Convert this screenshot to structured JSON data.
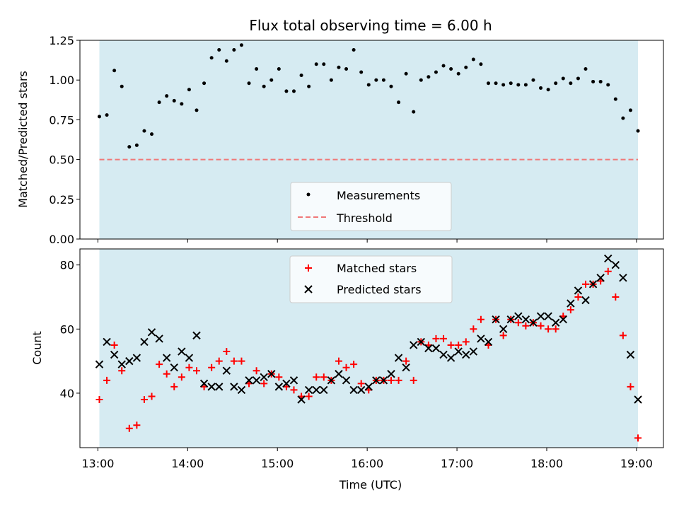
{
  "chart_data": [
    {
      "type": "scatter",
      "title": "Flux total observing time = 6.00 h",
      "ylabel": "Matched/Predicted stars",
      "ylim": [
        0,
        1.25
      ],
      "yticks": [
        "0.00",
        "0.25",
        "0.50",
        "0.75",
        "1.00",
        "1.25"
      ],
      "ytick_values": [
        0,
        0.25,
        0.5,
        0.75,
        1.0,
        1.25
      ],
      "xticks": [
        "13:00",
        "14:00",
        "15:00",
        "16:00",
        "17:00",
        "18:00",
        "19:00"
      ],
      "xtick_values": [
        "13:00",
        "14:00",
        "15:00",
        "16:00",
        "17:00",
        "18:00",
        "19:00"
      ],
      "xlim": [
        "12:48",
        "19:18"
      ],
      "shaded_span": [
        "13:01",
        "19:01"
      ],
      "grid": false,
      "legend_position": "lower center",
      "threshold": {
        "name": "Threshold",
        "value": 0.5,
        "color": "#f07878",
        "style": "dashed"
      },
      "series": [
        {
          "name": "Measurements",
          "color": "#000000",
          "marker": "dot",
          "x": [
            "13:01",
            "13:06",
            "13:11",
            "13:16",
            "13:21",
            "13:26",
            "13:31",
            "13:36",
            "13:41",
            "13:46",
            "13:51",
            "13:56",
            "14:01",
            "14:06",
            "14:11",
            "14:16",
            "14:21",
            "14:26",
            "14:31",
            "14:36",
            "14:41",
            "14:46",
            "14:51",
            "14:56",
            "15:01",
            "15:06",
            "15:11",
            "15:16",
            "15:21",
            "15:26",
            "15:31",
            "15:36",
            "15:41",
            "15:46",
            "15:51",
            "15:56",
            "16:01",
            "16:06",
            "16:11",
            "16:16",
            "16:21",
            "16:26",
            "16:31",
            "16:36",
            "16:41",
            "16:46",
            "16:51",
            "16:56",
            "17:01",
            "17:06",
            "17:11",
            "17:16",
            "17:21",
            "17:26",
            "17:31",
            "17:36",
            "17:41",
            "17:46",
            "17:51",
            "17:56",
            "18:01",
            "18:06",
            "18:11",
            "18:16",
            "18:21",
            "18:26",
            "18:31",
            "18:36",
            "18:41",
            "18:46",
            "18:51",
            "18:56",
            "19:01"
          ],
          "y": [
            0.77,
            0.78,
            1.06,
            0.96,
            0.58,
            0.59,
            0.68,
            0.66,
            0.86,
            0.9,
            0.87,
            0.85,
            0.94,
            0.81,
            0.98,
            1.14,
            1.19,
            1.12,
            1.19,
            1.22,
            0.98,
            1.07,
            0.96,
            1.0,
            1.07,
            0.93,
            0.93,
            1.03,
            0.96,
            1.1,
            1.1,
            1.0,
            1.08,
            1.07,
            1.19,
            1.05,
            0.97,
            1.0,
            1.0,
            0.96,
            0.86,
            1.04,
            0.8,
            1.0,
            1.02,
            1.05,
            1.09,
            1.07,
            1.04,
            1.08,
            1.13,
            1.1,
            0.98,
            0.98,
            0.97,
            0.98,
            0.97,
            0.97,
            1.0,
            0.95,
            0.94,
            0.98,
            1.01,
            0.98,
            1.01,
            1.07,
            0.99,
            0.99,
            0.97,
            0.88,
            0.76,
            0.81,
            0.68
          ]
        }
      ]
    },
    {
      "type": "scatter",
      "xlabel": "Time (UTC)",
      "ylabel": "Count",
      "ylim": [
        23,
        85
      ],
      "yticks": [
        "40",
        "60",
        "80"
      ],
      "ytick_values": [
        40,
        60,
        80
      ],
      "xticks": [
        "13:00",
        "14:00",
        "15:00",
        "16:00",
        "17:00",
        "18:00",
        "19:00"
      ],
      "xtick_values": [
        "13:00",
        "14:00",
        "15:00",
        "16:00",
        "17:00",
        "18:00",
        "19:00"
      ],
      "xlim": [
        "12:48",
        "19:18"
      ],
      "shaded_span": [
        "13:01",
        "19:01"
      ],
      "grid": false,
      "legend_position": "upper center",
      "series": [
        {
          "name": "Matched stars",
          "color": "#ff0000",
          "marker": "plus",
          "x": [
            "13:01",
            "13:06",
            "13:11",
            "13:16",
            "13:21",
            "13:26",
            "13:31",
            "13:36",
            "13:41",
            "13:46",
            "13:51",
            "13:56",
            "14:01",
            "14:06",
            "14:11",
            "14:16",
            "14:21",
            "14:26",
            "14:31",
            "14:36",
            "14:41",
            "14:46",
            "14:51",
            "14:56",
            "15:01",
            "15:06",
            "15:11",
            "15:16",
            "15:21",
            "15:26",
            "15:31",
            "15:36",
            "15:41",
            "15:46",
            "15:51",
            "15:56",
            "16:01",
            "16:06",
            "16:11",
            "16:16",
            "16:21",
            "16:26",
            "16:31",
            "16:36",
            "16:41",
            "16:46",
            "16:51",
            "16:56",
            "17:01",
            "17:06",
            "17:11",
            "17:16",
            "17:21",
            "17:26",
            "17:31",
            "17:36",
            "17:41",
            "17:46",
            "17:51",
            "17:56",
            "18:01",
            "18:06",
            "18:11",
            "18:16",
            "18:21",
            "18:26",
            "18:31",
            "18:36",
            "18:41",
            "18:46",
            "18:51",
            "18:56",
            "19:01"
          ],
          "y": [
            38,
            44,
            55,
            47,
            29,
            30,
            38,
            39,
            49,
            46,
            42,
            45,
            48,
            47,
            42,
            48,
            50,
            53,
            50,
            50,
            43,
            47,
            43,
            46,
            45,
            42,
            41,
            39,
            39,
            45,
            45,
            44,
            50,
            48,
            49,
            43,
            41,
            44,
            44,
            44,
            44,
            50,
            44,
            56,
            55,
            57,
            57,
            55,
            55,
            56,
            60,
            63,
            55,
            63,
            58,
            63,
            62,
            61,
            62,
            61,
            60,
            60,
            64,
            66,
            70,
            74,
            74,
            75,
            78,
            70,
            58,
            42,
            26
          ]
        },
        {
          "name": "Predicted stars",
          "color": "#000000",
          "marker": "x",
          "x": [
            "13:01",
            "13:06",
            "13:11",
            "13:16",
            "13:21",
            "13:26",
            "13:31",
            "13:36",
            "13:41",
            "13:46",
            "13:51",
            "13:56",
            "14:01",
            "14:06",
            "14:11",
            "14:16",
            "14:21",
            "14:26",
            "14:31",
            "14:36",
            "14:41",
            "14:46",
            "14:51",
            "14:56",
            "15:01",
            "15:06",
            "15:11",
            "15:16",
            "15:21",
            "15:26",
            "15:31",
            "15:36",
            "15:41",
            "15:46",
            "15:51",
            "15:56",
            "16:01",
            "16:06",
            "16:11",
            "16:16",
            "16:21",
            "16:26",
            "16:31",
            "16:36",
            "16:41",
            "16:46",
            "16:51",
            "16:56",
            "17:01",
            "17:06",
            "17:11",
            "17:16",
            "17:21",
            "17:26",
            "17:31",
            "17:36",
            "17:41",
            "17:46",
            "17:51",
            "17:56",
            "18:01",
            "18:06",
            "18:11",
            "18:16",
            "18:21",
            "18:26",
            "18:31",
            "18:36",
            "18:41",
            "18:46",
            "18:51",
            "18:56",
            "19:01"
          ],
          "y": [
            49,
            56,
            52,
            49,
            50,
            51,
            56,
            59,
            57,
            51,
            48,
            53,
            51,
            58,
            43,
            42,
            42,
            47,
            42,
            41,
            44,
            44,
            45,
            46,
            42,
            43,
            44,
            38,
            41,
            41,
            41,
            44,
            46,
            44,
            41,
            41,
            42,
            44,
            44,
            46,
            51,
            48,
            55,
            56,
            54,
            54,
            52,
            51,
            53,
            52,
            53,
            57,
            56,
            63,
            60,
            63,
            64,
            63,
            62,
            64,
            64,
            62,
            63,
            68,
            72,
            69,
            74,
            76,
            82,
            80,
            76,
            52,
            38
          ]
        }
      ]
    }
  ]
}
